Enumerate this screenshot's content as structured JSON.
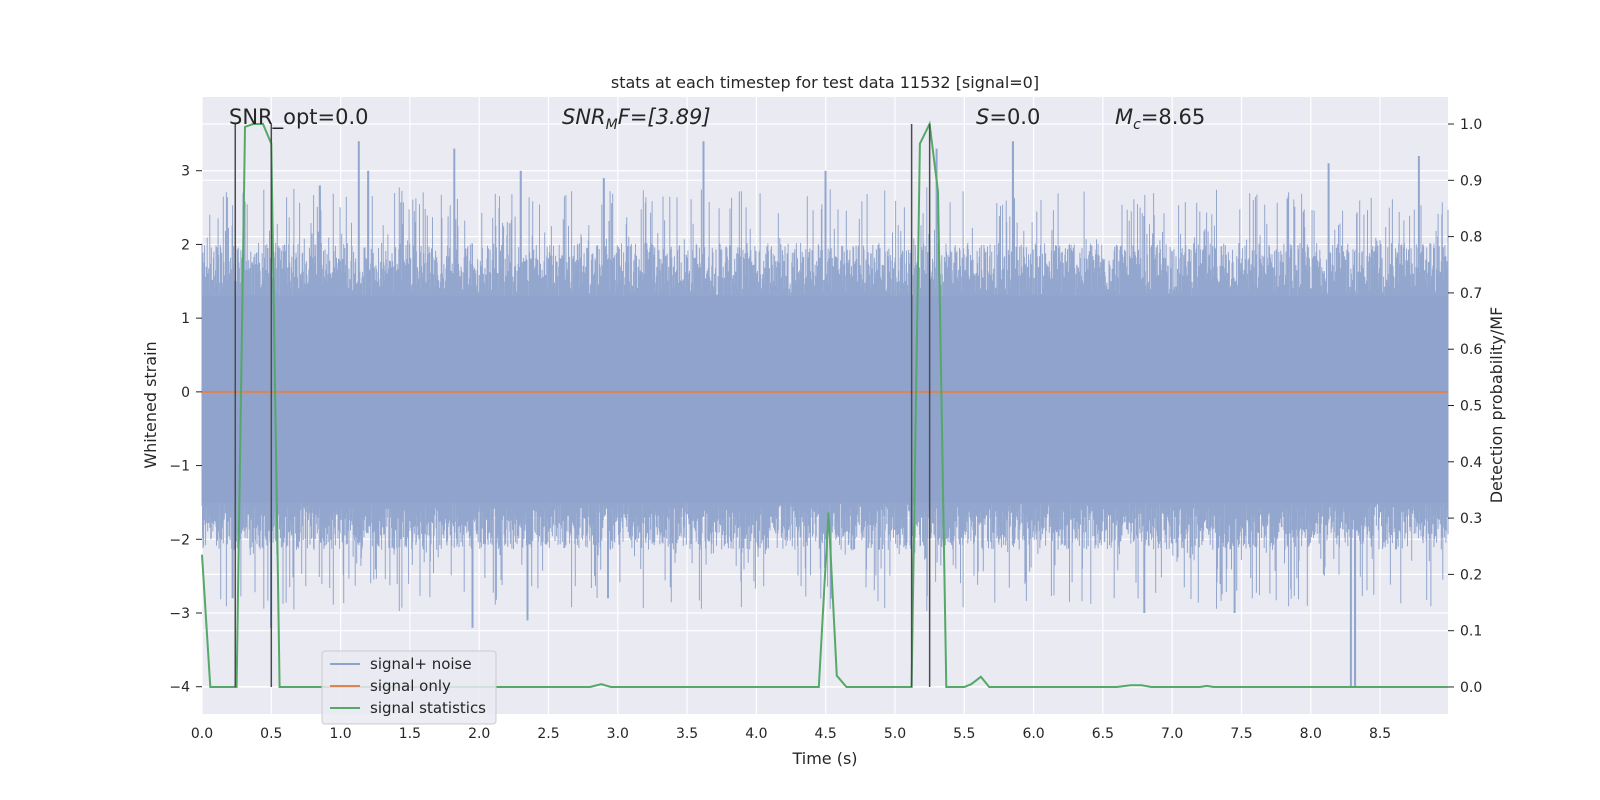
{
  "chart_data": {
    "type": "line",
    "title": "stats at each timestep for test data 11532 [signal=0]",
    "xlabel": "Time (s)",
    "ylabel": "Whitened strain",
    "ylabel_right": "Detection probability/MF",
    "xlim": [
      0,
      8.99
    ],
    "ylim": [
      -4.37,
      4.0
    ],
    "ylim_right": [
      -0.048,
      1.048
    ],
    "x_ticks": [
      0.0,
      0.5,
      1.0,
      1.5,
      2.0,
      2.5,
      3.0,
      3.5,
      4.0,
      4.5,
      5.0,
      5.5,
      6.0,
      6.5,
      7.0,
      7.5,
      8.0,
      8.5
    ],
    "x_tick_labels": [
      "0.0",
      "0.5",
      "1.0",
      "1.5",
      "2.0",
      "2.5",
      "3.0",
      "3.5",
      "4.0",
      "4.5",
      "5.0",
      "5.5",
      "6.0",
      "6.5",
      "7.0",
      "7.5",
      "8.0",
      "8.5"
    ],
    "y_ticks": [
      -4,
      -3,
      -2,
      -1,
      0,
      1,
      2,
      3
    ],
    "y_tick_labels": [
      "−4",
      "−3",
      "−2",
      "−1",
      "0",
      "1",
      "2",
      "3"
    ],
    "y_ticks_right": [
      0.0,
      0.1,
      0.2,
      0.3,
      0.4,
      0.5,
      0.6,
      0.7,
      0.8,
      0.9,
      1.0
    ],
    "y_tick_labels_right": [
      "0.0",
      "0.1",
      "0.2",
      "0.3",
      "0.4",
      "0.5",
      "0.6",
      "0.7",
      "0.8",
      "0.9",
      "1.0"
    ],
    "grid": true,
    "legend_position": "lower-left",
    "annotations": [
      {
        "prefix": "SNR_opt=0.0",
        "sub": "",
        "suffix": "",
        "italic": false
      },
      {
        "prefix": "SNR",
        "sub": "M",
        "suffix": "F=[3.89]",
        "italic": true
      },
      {
        "prefix": "S",
        "sub": "",
        "suffix": "=0.0",
        "italic": true
      },
      {
        "prefix": "M",
        "sub": "c",
        "suffix": "=8.65",
        "italic": true
      }
    ],
    "vertical_markers": [
      {
        "x": 0.24,
        "y_top": 1.0
      },
      {
        "x": 0.5,
        "y_top": 1.0
      },
      {
        "x": 5.12,
        "y_top": 1.0
      },
      {
        "x": 5.25,
        "y_top": 1.0
      }
    ],
    "noise_envelope": {
      "peaks_upper": [
        {
          "x": 0.3,
          "y": 2.7
        },
        {
          "x": 0.85,
          "y": 2.8
        },
        {
          "x": 1.13,
          "y": 3.4
        },
        {
          "x": 1.2,
          "y": 3.0
        },
        {
          "x": 1.82,
          "y": 3.3
        },
        {
          "x": 2.3,
          "y": 3.0
        },
        {
          "x": 2.9,
          "y": 2.9
        },
        {
          "x": 3.62,
          "y": 3.4
        },
        {
          "x": 4.5,
          "y": 3.0
        },
        {
          "x": 5.3,
          "y": 3.3
        },
        {
          "x": 5.85,
          "y": 3.4
        },
        {
          "x": 8.13,
          "y": 3.1
        },
        {
          "x": 8.78,
          "y": 3.2
        }
      ],
      "peaks_lower": [
        {
          "x": 0.22,
          "y": -2.8
        },
        {
          "x": 0.5,
          "y": -3.2
        },
        {
          "x": 1.95,
          "y": -3.2
        },
        {
          "x": 2.35,
          "y": -3.1
        },
        {
          "x": 2.93,
          "y": -2.8
        },
        {
          "x": 6.8,
          "y": -3.0
        },
        {
          "x": 7.45,
          "y": -3.0
        },
        {
          "x": 8.29,
          "y": -4.0
        },
        {
          "x": 8.32,
          "y": -4.0
        }
      ]
    },
    "series": [
      {
        "name": "signal+ noise",
        "color": "#8ea2cb",
        "axis": "left"
      },
      {
        "name": "signal only",
        "color": "#dd8452",
        "axis": "left",
        "x": [
          0,
          8.99
        ],
        "y": [
          0,
          0
        ]
      },
      {
        "name": "signal statistics",
        "color": "#55a868",
        "axis": "right",
        "x": [
          0.0,
          0.06,
          0.12,
          0.18,
          0.25,
          0.31,
          0.37,
          0.44,
          0.5,
          0.56,
          0.62,
          0.69,
          0.75,
          0.81,
          0.87,
          0.94,
          1.0,
          1.5,
          2.0,
          2.2,
          2.5,
          2.6,
          2.8,
          2.88,
          2.95,
          3.0,
          4.45,
          4.52,
          4.58,
          4.65,
          4.72,
          4.8,
          5.12,
          5.18,
          5.25,
          5.31,
          5.37,
          5.43,
          5.5,
          5.55,
          5.62,
          5.68,
          5.75,
          6.6,
          6.7,
          6.78,
          6.85,
          7.2,
          7.25,
          7.3,
          8.99
        ],
        "y": [
          0.235,
          0.0,
          0.0,
          0.0,
          0.0,
          0.995,
          1.0,
          1.0,
          0.965,
          0.0,
          0.0,
          0.0,
          0.0,
          0.0,
          0.0,
          0.0,
          0.0,
          0.0,
          0.0,
          0.0,
          0.0,
          0.0,
          0.0,
          0.005,
          0.0,
          0.0,
          0.0,
          0.31,
          0.02,
          0.0,
          0.0,
          0.0,
          0.0,
          0.965,
          1.0,
          0.88,
          0.0,
          0.0,
          0.0,
          0.005,
          0.018,
          0.0,
          0.0,
          0.0,
          0.003,
          0.003,
          0.0,
          0.0,
          0.002,
          0.0,
          0.0
        ]
      }
    ]
  }
}
